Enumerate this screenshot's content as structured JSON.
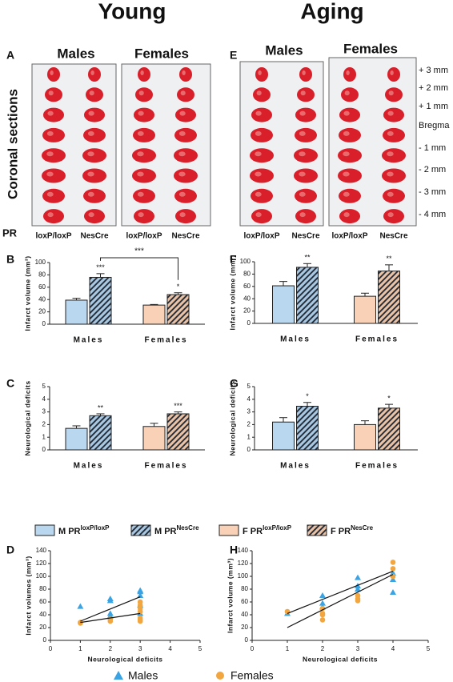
{
  "figure": {
    "titles": [
      "Young",
      "Aging"
    ],
    "panels": [
      "A",
      "E"
    ],
    "row_label": "Coronal sections",
    "pr": "PR",
    "young_groups": [
      "Males",
      "Females"
    ],
    "aging_groups": [
      "Males",
      "Females"
    ],
    "young_columns": [
      "loxP/loxP",
      "NesCre",
      "loxP/loxP",
      "NesCre"
    ],
    "aging_columns": [
      "loxP/loxP",
      "NesCre",
      "loxP/loxP",
      "NesCre"
    ],
    "levels": [
      "+ 3 mm",
      "+ 2 mm",
      "+ 1 mm",
      "Bregma",
      "- 1 mm",
      "- 2 mm",
      "- 3 mm",
      "- 4 mm"
    ]
  },
  "chart_data": [
    {
      "type": "bar",
      "panel": "B",
      "ylabel": "Infarct volume (mm³)",
      "categories": [
        "Males",
        "Females"
      ],
      "ylim": [
        0,
        100
      ],
      "yticks": [
        0,
        20,
        40,
        60,
        80,
        100
      ],
      "bracket": "***",
      "series": [
        {
          "name": "M PRloxP/loxP",
          "color": "#b9d8ef",
          "hatch": false,
          "values": [
            39,
            null
          ],
          "errors": [
            3,
            null
          ],
          "sig": [
            null,
            null
          ]
        },
        {
          "name": "M PRNesCre",
          "color": "#a9c8e2",
          "hatch": true,
          "values": [
            76,
            null
          ],
          "errors": [
            6,
            null
          ],
          "sig": [
            "***",
            null
          ]
        },
        {
          "name": "F PRloxP/loxP",
          "color": "#f9d1b6",
          "hatch": false,
          "values": [
            null,
            31
          ],
          "errors": [
            null,
            1
          ],
          "sig": [
            null,
            null
          ]
        },
        {
          "name": "F PRNesCre",
          "color": "#eac3a6",
          "hatch": true,
          "values": [
            null,
            48
          ],
          "errors": [
            null,
            3
          ],
          "sig": [
            null,
            "*"
          ]
        }
      ]
    },
    {
      "type": "bar",
      "panel": "F",
      "ylabel": "Infarct volume (mm³)",
      "categories": [
        "Males",
        "Females"
      ],
      "ylim": [
        0,
        100
      ],
      "yticks": [
        0,
        20,
        40,
        60,
        80,
        100
      ],
      "series": [
        {
          "color": "#b9d8ef",
          "hatch": false,
          "values": [
            61,
            null
          ],
          "errors": [
            7,
            null
          ],
          "sig": [
            null,
            null
          ]
        },
        {
          "color": "#a9c8e2",
          "hatch": true,
          "values": [
            91,
            null
          ],
          "errors": [
            6,
            null
          ],
          "sig": [
            "**",
            null
          ]
        },
        {
          "color": "#f9d1b6",
          "hatch": false,
          "values": [
            null,
            44
          ],
          "errors": [
            null,
            5
          ],
          "sig": [
            null,
            null
          ]
        },
        {
          "color": "#eac3a6",
          "hatch": true,
          "values": [
            null,
            85
          ],
          "errors": [
            null,
            10
          ],
          "sig": [
            null,
            "**"
          ]
        }
      ]
    },
    {
      "type": "bar",
      "panel": "C",
      "ylabel": "Neurological deficits",
      "categories": [
        "Males",
        "Females"
      ],
      "ylim": [
        0,
        5
      ],
      "yticks": [
        0,
        1,
        2,
        3,
        4,
        5
      ],
      "series": [
        {
          "color": "#b9d8ef",
          "hatch": false,
          "values": [
            1.7,
            null
          ],
          "errors": [
            0.2,
            null
          ],
          "sig": [
            null,
            null
          ]
        },
        {
          "color": "#a9c8e2",
          "hatch": true,
          "values": [
            2.7,
            null
          ],
          "errors": [
            0.15,
            null
          ],
          "sig": [
            "**",
            null
          ]
        },
        {
          "color": "#f9d1b6",
          "hatch": false,
          "values": [
            null,
            1.85
          ],
          "errors": [
            null,
            0.25
          ],
          "sig": [
            null,
            null
          ]
        },
        {
          "color": "#eac3a6",
          "hatch": true,
          "values": [
            null,
            2.85
          ],
          "errors": [
            null,
            0.15
          ],
          "sig": [
            null,
            "***"
          ]
        }
      ]
    },
    {
      "type": "bar",
      "panel": "G",
      "ylabel": "Neurological deficits",
      "categories": [
        "Males",
        "Females"
      ],
      "ylim": [
        0,
        5
      ],
      "yticks": [
        0,
        1,
        2,
        3,
        4,
        5
      ],
      "series": [
        {
          "color": "#b9d8ef",
          "hatch": false,
          "values": [
            2.2,
            null
          ],
          "errors": [
            0.35,
            null
          ],
          "sig": [
            null,
            null
          ]
        },
        {
          "color": "#a9c8e2",
          "hatch": true,
          "values": [
            3.45,
            null
          ],
          "errors": [
            0.3,
            null
          ],
          "sig": [
            "*",
            null
          ]
        },
        {
          "color": "#f9d1b6",
          "hatch": false,
          "values": [
            null,
            2.0
          ],
          "errors": [
            null,
            0.3
          ],
          "sig": [
            null,
            null
          ]
        },
        {
          "color": "#eac3a6",
          "hatch": true,
          "values": [
            null,
            3.3
          ],
          "errors": [
            null,
            0.3
          ],
          "sig": [
            null,
            "*"
          ]
        }
      ]
    },
    {
      "type": "scatter",
      "panel": "D",
      "ylabel": "Infarct volumes (mm³)",
      "xlabel": "Neurological deficits",
      "xlim": [
        0,
        5
      ],
      "xticks": [
        0,
        1,
        2,
        3,
        4,
        5
      ],
      "ylim": [
        0,
        140
      ],
      "yticks": [
        0,
        20,
        40,
        60,
        80,
        100,
        120,
        140
      ],
      "series": [
        {
          "name": "Males",
          "color": "#3aa3e3",
          "marker": "triangle",
          "x": [
            1,
            2,
            2,
            2,
            2,
            3,
            3,
            3,
            3,
            3
          ],
          "values": [
            53,
            65,
            62,
            42,
            38,
            78,
            76,
            70,
            55,
            42
          ],
          "fit": {
            "x": [
              1,
              3
            ],
            "y": [
              30,
              68
            ]
          }
        },
        {
          "name": "Females",
          "color": "#f2a640",
          "marker": "circle",
          "x": [
            1,
            1,
            2,
            2,
            3,
            3,
            3,
            3,
            3,
            3,
            3
          ],
          "values": [
            27,
            28,
            30,
            33,
            60,
            55,
            50,
            45,
            35,
            32,
            30
          ],
          "fit": {
            "x": [
              1,
              3
            ],
            "y": [
              28,
              42
            ]
          }
        }
      ]
    },
    {
      "type": "scatter",
      "panel": "H",
      "ylabel": "Infarct volume (mm³)",
      "xlabel": "Neurological deficits",
      "xlim": [
        0,
        5
      ],
      "xticks": [
        0,
        1,
        2,
        3,
        4,
        5
      ],
      "ylim": [
        0,
        140
      ],
      "yticks": [
        0,
        20,
        40,
        60,
        80,
        100,
        120,
        140
      ],
      "series": [
        {
          "color": "#3aa3e3",
          "marker": "triangle",
          "x": [
            1,
            2,
            2,
            2,
            3,
            3,
            3,
            4,
            4,
            4
          ],
          "values": [
            42,
            70,
            58,
            52,
            98,
            85,
            80,
            105,
            95,
            75
          ],
          "fit": {
            "x": [
              1,
              4
            ],
            "y": [
              42,
              108
            ]
          }
        },
        {
          "color": "#f2a640",
          "marker": "circle",
          "x": [
            1,
            2,
            2,
            2,
            2,
            3,
            3,
            3,
            4,
            4,
            4
          ],
          "values": [
            45,
            50,
            42,
            40,
            32,
            70,
            65,
            62,
            122,
            112,
            100
          ],
          "fit": {
            "x": [
              1,
              4
            ],
            "y": [
              20,
              103
            ]
          }
        }
      ]
    }
  ]
}
